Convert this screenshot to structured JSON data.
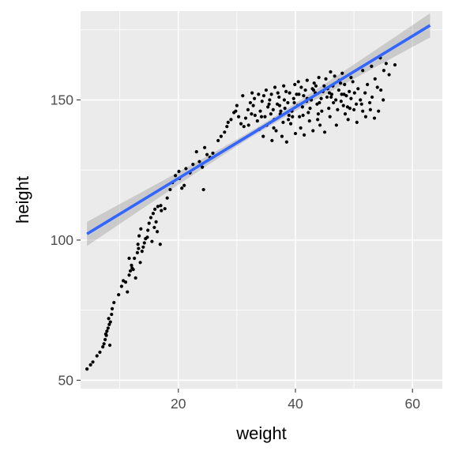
{
  "chart_data": {
    "type": "scatter",
    "title": "",
    "xlabel": "weight",
    "ylabel": "height",
    "xlim": [
      3.3,
      65.1
    ],
    "ylim": [
      47.0,
      181.7
    ],
    "x_ticks": [
      20,
      40,
      60
    ],
    "y_ticks": [
      50,
      100,
      150
    ],
    "x_minor_ticks": [
      10,
      30,
      50
    ],
    "y_minor_ticks": [
      75,
      125,
      175
    ],
    "grid": true,
    "legend": "none",
    "colors": {
      "panel_background": "#ebebeb",
      "grid": "#ffffff",
      "points": "#000000",
      "fit_line": "#3366ff",
      "confidence_band": "#999999"
    },
    "smooth": {
      "method": "linear",
      "se": true,
      "x": [
        4.4,
        63.0
      ],
      "y": [
        102.2,
        176.6
      ],
      "ci_halfwidth_ends": 4.3,
      "ci_halfwidth_center": 1.1
    },
    "points": [
      [
        4.4,
        54.0
      ],
      [
        5.0,
        55.5
      ],
      [
        5.4,
        56.5
      ],
      [
        6.1,
        58.7
      ],
      [
        6.6,
        60.0
      ],
      [
        7.1,
        61.9
      ],
      [
        7.3,
        63.0
      ],
      [
        7.5,
        64.5
      ],
      [
        7.7,
        66.0
      ],
      [
        7.8,
        67.5
      ],
      [
        8.0,
        68.6
      ],
      [
        8.2,
        69.9
      ],
      [
        8.4,
        70.8
      ],
      [
        8.1,
        72.0
      ],
      [
        8.6,
        73.5
      ],
      [
        8.7,
        75.5
      ],
      [
        9.0,
        77.7
      ],
      [
        7.6,
        66.5
      ],
      [
        8.3,
        62.5
      ],
      [
        9.8,
        80.5
      ],
      [
        10.3,
        83.5
      ],
      [
        11.0,
        85.0
      ],
      [
        11.6,
        87.5
      ],
      [
        12.0,
        91.0
      ],
      [
        12.5,
        93.5
      ],
      [
        11.8,
        89.0
      ],
      [
        13.0,
        95.5
      ],
      [
        13.1,
        98.5
      ],
      [
        13.3,
        101.5
      ],
      [
        13.6,
        104.0
      ],
      [
        12.1,
        90.0
      ],
      [
        13.5,
        92.0
      ],
      [
        14.0,
        97.5
      ],
      [
        14.4,
        100.5
      ],
      [
        14.8,
        103.5
      ],
      [
        15.0,
        106.0
      ],
      [
        15.3,
        108.0
      ],
      [
        15.7,
        109.5
      ],
      [
        16.0,
        111.0
      ],
      [
        16.5,
        112.0
      ],
      [
        17.1,
        110.5
      ],
      [
        17.7,
        111.2
      ],
      [
        15.9,
        104.5
      ],
      [
        16.4,
        103.0
      ],
      [
        16.9,
        98.5
      ],
      [
        15.5,
        99.5
      ],
      [
        14.2,
        99.0
      ],
      [
        13.8,
        96.0
      ],
      [
        12.7,
        86.5
      ],
      [
        11.3,
        81.5
      ],
      [
        10.6,
        85.5
      ],
      [
        11.6,
        93.5
      ],
      [
        14.7,
        101.0
      ],
      [
        16.2,
        106.5
      ],
      [
        13.2,
        97.0
      ],
      [
        12.3,
        89.5
      ],
      [
        17.0,
        112.3
      ],
      [
        18.1,
        115.0
      ],
      [
        18.6,
        118.0
      ],
      [
        19.0,
        120.5
      ],
      [
        19.5,
        123.0
      ],
      [
        20.2,
        122.0
      ],
      [
        20.6,
        118.5
      ],
      [
        21.0,
        119.5
      ],
      [
        21.3,
        125.5
      ],
      [
        22.0,
        124.0
      ],
      [
        22.5,
        127.0
      ],
      [
        23.1,
        131.5
      ],
      [
        23.6,
        128.0
      ],
      [
        24.1,
        126.0
      ],
      [
        24.5,
        133.0
      ],
      [
        24.9,
        130.5
      ],
      [
        25.4,
        129.5
      ],
      [
        25.9,
        131.0
      ],
      [
        26.8,
        135.5
      ],
      [
        27.3,
        137.0
      ],
      [
        27.9,
        138.5
      ],
      [
        28.3,
        140.5
      ],
      [
        29.0,
        143.0
      ],
      [
        29.5,
        145.5
      ],
      [
        29.8,
        146.0
      ],
      [
        20.1,
        124.5
      ],
      [
        24.3,
        118.0
      ],
      [
        28.5,
        142.0
      ],
      [
        30.3,
        144.0
      ],
      [
        30.7,
        141.5
      ],
      [
        31.5,
        143.5
      ],
      [
        31.9,
        146.5
      ],
      [
        32.3,
        149.0
      ],
      [
        32.6,
        152.5
      ],
      [
        32.8,
        148.0
      ],
      [
        33.1,
        144.5
      ],
      [
        33.5,
        142.5
      ],
      [
        33.8,
        139.5
      ],
      [
        34.0,
        146.0
      ],
      [
        34.3,
        149.5
      ],
      [
        34.6,
        151.5
      ],
      [
        34.8,
        144.0
      ],
      [
        35.1,
        141.0
      ],
      [
        35.3,
        147.5
      ],
      [
        35.6,
        150.0
      ],
      [
        35.9,
        152.0
      ],
      [
        36.2,
        146.5
      ],
      [
        36.4,
        143.0
      ],
      [
        36.7,
        139.0
      ],
      [
        36.9,
        148.5
      ],
      [
        37.2,
        151.0
      ],
      [
        37.4,
        145.0
      ],
      [
        37.7,
        137.0
      ],
      [
        37.9,
        142.0
      ],
      [
        38.2,
        147.0
      ],
      [
        38.4,
        153.0
      ],
      [
        38.7,
        149.0
      ],
      [
        38.9,
        144.5
      ],
      [
        39.2,
        141.5
      ],
      [
        39.4,
        146.0
      ],
      [
        39.7,
        150.5
      ],
      [
        39.9,
        155.5
      ],
      [
        40.2,
        152.0
      ],
      [
        40.4,
        148.0
      ],
      [
        40.7,
        144.0
      ],
      [
        40.9,
        140.0
      ],
      [
        41.2,
        147.5
      ],
      [
        41.4,
        151.5
      ],
      [
        41.7,
        153.5
      ],
      [
        41.9,
        149.5
      ],
      [
        42.2,
        145.5
      ],
      [
        42.4,
        142.5
      ],
      [
        42.7,
        150.0
      ],
      [
        42.9,
        154.0
      ],
      [
        43.2,
        156.0
      ],
      [
        43.4,
        152.5
      ],
      [
        43.7,
        148.5
      ],
      [
        43.9,
        145.0
      ],
      [
        44.2,
        141.0
      ],
      [
        44.4,
        150.5
      ],
      [
        44.7,
        153.0
      ],
      [
        44.9,
        155.0
      ],
      [
        45.2,
        157.5
      ],
      [
        45.4,
        151.0
      ],
      [
        45.7,
        147.0
      ],
      [
        45.9,
        144.0
      ],
      [
        46.2,
        152.0
      ],
      [
        46.4,
        155.0
      ],
      [
        46.7,
        158.5
      ],
      [
        46.9,
        150.0
      ],
      [
        47.2,
        146.5
      ],
      [
        47.4,
        153.5
      ],
      [
        47.7,
        156.0
      ],
      [
        47.9,
        152.0
      ],
      [
        48.2,
        148.0
      ],
      [
        48.4,
        155.5
      ],
      [
        48.7,
        151.5
      ],
      [
        48.9,
        147.5
      ],
      [
        49.2,
        153.0
      ],
      [
        49.5,
        150.5
      ],
      [
        49.8,
        156.5
      ],
      [
        50.1,
        152.5
      ],
      [
        50.4,
        148.5
      ],
      [
        50.7,
        154.0
      ],
      [
        51.1,
        150.0
      ],
      [
        51.5,
        146.0
      ],
      [
        51.9,
        152.5
      ],
      [
        52.3,
        155.5
      ],
      [
        52.7,
        149.0
      ],
      [
        53.1,
        151.0
      ],
      [
        53.6,
        157.5
      ],
      [
        54.0,
        154.5
      ],
      [
        54.6,
        153.5
      ],
      [
        55.1,
        160.5
      ],
      [
        56.0,
        159.0
      ],
      [
        57.0,
        162.5
      ],
      [
        31.2,
        140.5
      ],
      [
        32.0,
        141.0
      ],
      [
        34.5,
        137.0
      ],
      [
        36.0,
        135.5
      ],
      [
        38.5,
        135.0
      ],
      [
        40.0,
        138.0
      ],
      [
        41.5,
        137.5
      ],
      [
        43.0,
        139.0
      ],
      [
        45.0,
        138.5
      ],
      [
        47.0,
        141.0
      ],
      [
        49.0,
        143.0
      ],
      [
        50.5,
        142.0
      ],
      [
        52.0,
        144.0
      ],
      [
        53.5,
        143.5
      ],
      [
        48.0,
        159.5
      ],
      [
        46.0,
        160.0
      ],
      [
        44.0,
        158.0
      ],
      [
        42.0,
        157.0
      ],
      [
        40.5,
        156.5
      ],
      [
        38.0,
        155.0
      ],
      [
        36.5,
        154.5
      ],
      [
        35.0,
        153.5
      ],
      [
        33.7,
        152.0
      ],
      [
        31.0,
        151.5
      ],
      [
        30.0,
        148.0
      ],
      [
        33.0,
        150.5
      ],
      [
        35.5,
        148.5
      ],
      [
        37.0,
        152.5
      ],
      [
        39.0,
        152.5
      ],
      [
        41.0,
        154.5
      ],
      [
        43.5,
        155.0
      ],
      [
        45.5,
        154.0
      ],
      [
        47.5,
        157.0
      ],
      [
        49.5,
        158.0
      ],
      [
        51.5,
        160.5
      ],
      [
        53.0,
        162.0
      ],
      [
        54.5,
        165.0
      ],
      [
        55.5,
        163.0
      ],
      [
        37.5,
        146.0
      ],
      [
        39.5,
        144.0
      ],
      [
        42.5,
        147.0
      ],
      [
        44.5,
        146.0
      ],
      [
        46.5,
        149.0
      ],
      [
        48.5,
        145.0
      ],
      [
        50.0,
        146.5
      ],
      [
        36.3,
        140.0
      ],
      [
        38.8,
        143.0
      ],
      [
        41.3,
        144.5
      ],
      [
        43.8,
        143.0
      ],
      [
        34.2,
        144.0
      ],
      [
        32.5,
        145.0
      ],
      [
        35.8,
        145.0
      ],
      [
        37.3,
        148.0
      ],
      [
        39.8,
        149.0
      ],
      [
        42.0,
        150.5
      ],
      [
        44.1,
        149.0
      ],
      [
        46.1,
        151.0
      ],
      [
        47.8,
        149.5
      ],
      [
        49.3,
        147.0
      ],
      [
        51.3,
        148.5
      ],
      [
        52.8,
        146.5
      ],
      [
        54.2,
        146.0
      ],
      [
        55.0,
        150.0
      ],
      [
        38.1,
        150.0
      ],
      [
        40.6,
        152.0
      ],
      [
        43.1,
        153.5
      ],
      [
        45.8,
        152.5
      ],
      [
        48.3,
        152.0
      ]
    ]
  }
}
